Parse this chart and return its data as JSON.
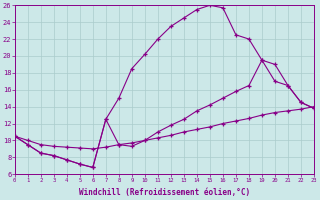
{
  "xlabel": "Windchill (Refroidissement éolien,°C)",
  "bg_color": "#cce8e8",
  "line_color": "#880088",
  "grid_color": "#aacccc",
  "xlim": [
    0,
    23
  ],
  "ylim": [
    6,
    26
  ],
  "yticks": [
    6,
    8,
    10,
    12,
    14,
    16,
    18,
    20,
    22,
    24,
    26
  ],
  "xticks": [
    0,
    1,
    2,
    3,
    4,
    5,
    6,
    7,
    8,
    9,
    10,
    11,
    12,
    13,
    14,
    15,
    16,
    17,
    18,
    19,
    20,
    21,
    22,
    23
  ],
  "curve1_x": [
    0,
    1,
    2,
    3,
    4,
    5,
    6,
    7,
    8,
    9,
    10,
    11,
    12,
    13,
    14,
    15,
    16,
    17,
    18,
    19,
    20,
    21,
    22,
    23
  ],
  "curve1_y": [
    10.5,
    9.5,
    8.5,
    8.2,
    7.7,
    7.2,
    6.8,
    12.5,
    15.0,
    18.5,
    20.2,
    22.0,
    23.5,
    24.5,
    25.5,
    26.0,
    25.7,
    22.5,
    22.0,
    19.5,
    19.0,
    16.5,
    14.5,
    13.8
  ],
  "curve2_x": [
    0,
    1,
    2,
    3,
    4,
    5,
    6,
    7,
    8,
    9,
    10,
    11,
    12,
    13,
    14,
    15,
    16,
    17,
    18,
    19,
    20,
    21,
    22,
    23
  ],
  "curve2_y": [
    10.5,
    9.5,
    8.5,
    8.2,
    7.7,
    7.2,
    6.8,
    12.5,
    9.5,
    9.3,
    10.0,
    11.0,
    11.8,
    12.5,
    13.5,
    14.2,
    15.0,
    15.8,
    16.5,
    19.5,
    17.0,
    16.5,
    14.5,
    13.8
  ],
  "curve3_x": [
    0,
    1,
    2,
    3,
    4,
    5,
    6,
    7,
    8,
    9,
    10,
    11,
    12,
    13,
    14,
    15,
    16,
    17,
    18,
    19,
    20,
    21,
    22,
    23
  ],
  "curve3_y": [
    10.5,
    10.0,
    9.5,
    9.3,
    9.2,
    9.1,
    9.0,
    9.2,
    9.5,
    9.7,
    10.0,
    10.3,
    10.6,
    11.0,
    11.3,
    11.6,
    12.0,
    12.3,
    12.6,
    13.0,
    13.3,
    13.5,
    13.7,
    14.0
  ]
}
